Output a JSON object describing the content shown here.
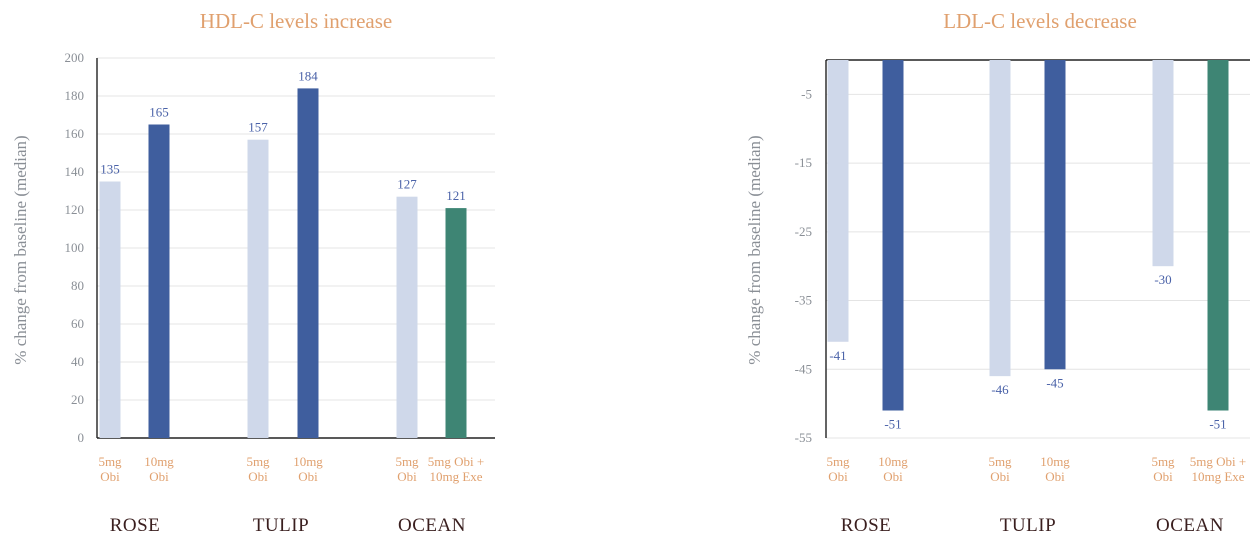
{
  "colors": {
    "light": "#cfd8ea",
    "dark": "#3f5e9e",
    "teal": "#3e8574",
    "title": "#e0a06e",
    "group_label": "#3a1f1f",
    "value_label": "#4a62a8"
  },
  "chart_data": [
    {
      "type": "bar",
      "title": "HDL-C levels increase",
      "ylabel": "% change from baseline (median)",
      "ylim": [
        0,
        200
      ],
      "yticks": [
        0,
        20,
        40,
        60,
        80,
        100,
        120,
        140,
        160,
        180,
        200
      ],
      "grid": true,
      "groups": [
        {
          "name": "ROSE",
          "bars": [
            {
              "label": [
                "5mg",
                "Obi"
              ],
              "value": 135,
              "value_text": "135",
              "color": "light"
            },
            {
              "label": [
                "10mg",
                "Obi"
              ],
              "value": 165,
              "value_text": "165",
              "color": "dark"
            }
          ]
        },
        {
          "name": "TULIP",
          "bars": [
            {
              "label": [
                "5mg",
                "Obi"
              ],
              "value": 157,
              "value_text": "157",
              "color": "light"
            },
            {
              "label": [
                "10mg",
                "Obi"
              ],
              "value": 184,
              "value_text": "184",
              "color": "dark"
            }
          ]
        },
        {
          "name": "OCEAN",
          "bars": [
            {
              "label": [
                "5mg",
                "Obi"
              ],
              "value": 127,
              "value_text": "127",
              "color": "light"
            },
            {
              "label": [
                "5mg Obi +",
                "10mg Exe"
              ],
              "value": 121,
              "value_text": "121",
              "color": "teal"
            }
          ]
        }
      ]
    },
    {
      "type": "bar",
      "title": "LDL-C levels decrease",
      "ylabel": "% change from baseline (median)",
      "ylim": [
        -55,
        0
      ],
      "yticks": [
        -5,
        -15,
        -25,
        -35,
        -45,
        -55
      ],
      "grid": true,
      "groups": [
        {
          "name": "ROSE",
          "bars": [
            {
              "label": [
                "5mg",
                "Obi"
              ],
              "value": -41,
              "value_text": "-41",
              "color": "light"
            },
            {
              "label": [
                "10mg",
                "Obi"
              ],
              "value": -51,
              "value_text": "-51",
              "color": "dark"
            }
          ]
        },
        {
          "name": "TULIP",
          "bars": [
            {
              "label": [
                "5mg",
                "Obi"
              ],
              "value": -46,
              "value_text": "-46",
              "color": "light"
            },
            {
              "label": [
                "10mg",
                "Obi"
              ],
              "value": -45,
              "value_text": "-45",
              "color": "dark"
            }
          ]
        },
        {
          "name": "OCEAN",
          "bars": [
            {
              "label": [
                "5mg",
                "Obi"
              ],
              "value": -30,
              "value_text": "-30",
              "color": "light"
            },
            {
              "label": [
                "5mg Obi +",
                "10mg Exe"
              ],
              "value": -51,
              "value_text": "-51",
              "color": "teal"
            }
          ]
        }
      ]
    }
  ]
}
